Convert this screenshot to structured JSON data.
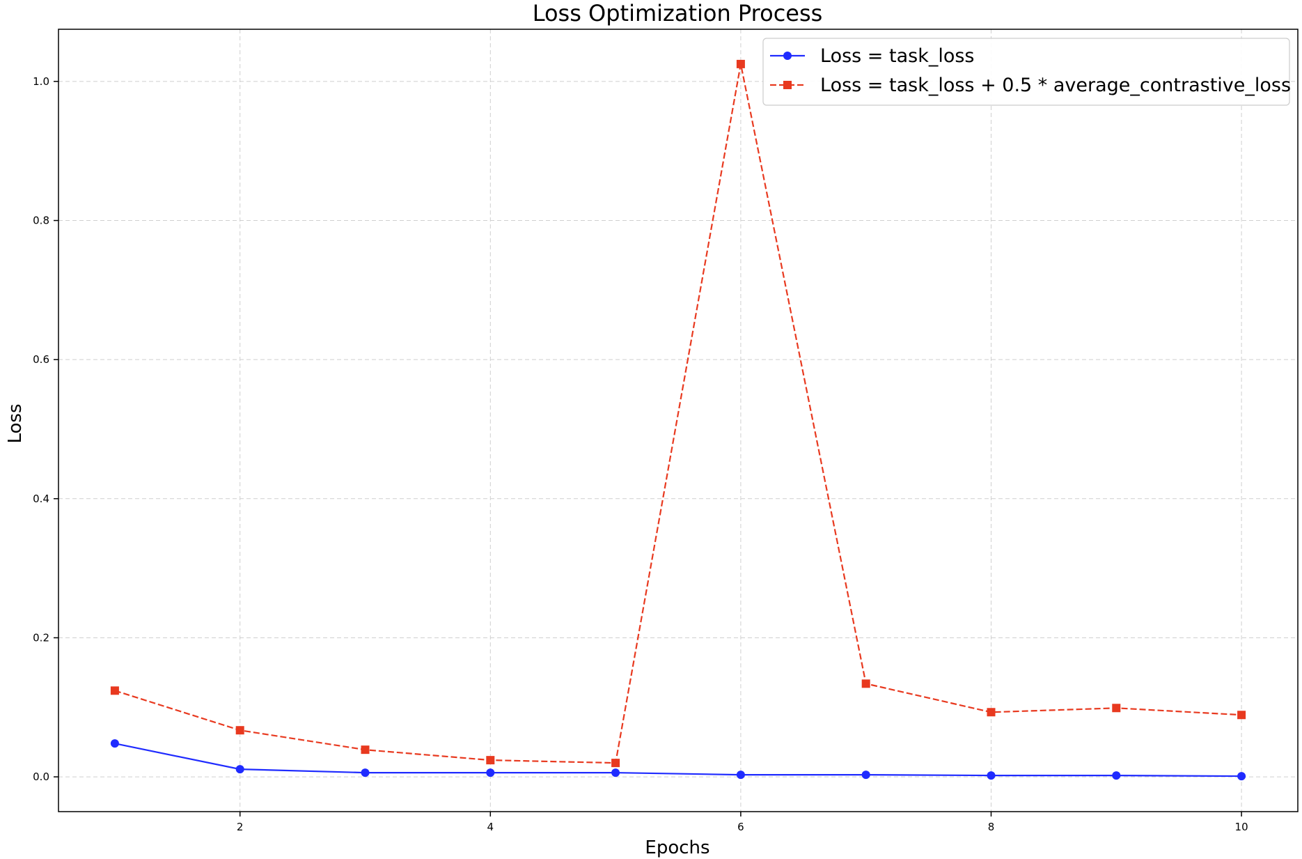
{
  "chart_data": {
    "type": "line",
    "title": "Loss Optimization Process",
    "xlabel": "Epochs",
    "ylabel": "Loss",
    "x": [
      1,
      2,
      3,
      4,
      5,
      6,
      7,
      8,
      9,
      10
    ],
    "xlim": [
      0.55,
      10.45
    ],
    "ylim": [
      -0.05,
      1.075
    ],
    "xticks": [
      2,
      4,
      6,
      8,
      10
    ],
    "xtick_labels": [
      "2",
      "4",
      "6",
      "8",
      "10"
    ],
    "yticks": [
      0.0,
      0.2,
      0.4,
      0.6,
      0.8,
      1.0
    ],
    "ytick_labels": [
      "0.0",
      "0.2",
      "0.4",
      "0.6",
      "0.8",
      "1.0"
    ],
    "grid": true,
    "legend_position": "top-right",
    "series": [
      {
        "name": "Loss = task_loss",
        "color": "#1f2bff",
        "line_style": "solid",
        "marker": "circle",
        "values": [
          0.048,
          0.011,
          0.006,
          0.006,
          0.006,
          0.003,
          0.003,
          0.002,
          0.002,
          0.001
        ]
      },
      {
        "name": "Loss = task_loss + 0.5 * average_contrastive_loss",
        "color": "#e8391f",
        "line_style": "dashed",
        "marker": "square",
        "values": [
          0.124,
          0.067,
          0.039,
          0.024,
          0.02,
          1.025,
          0.134,
          0.093,
          0.099,
          0.089
        ]
      }
    ]
  }
}
